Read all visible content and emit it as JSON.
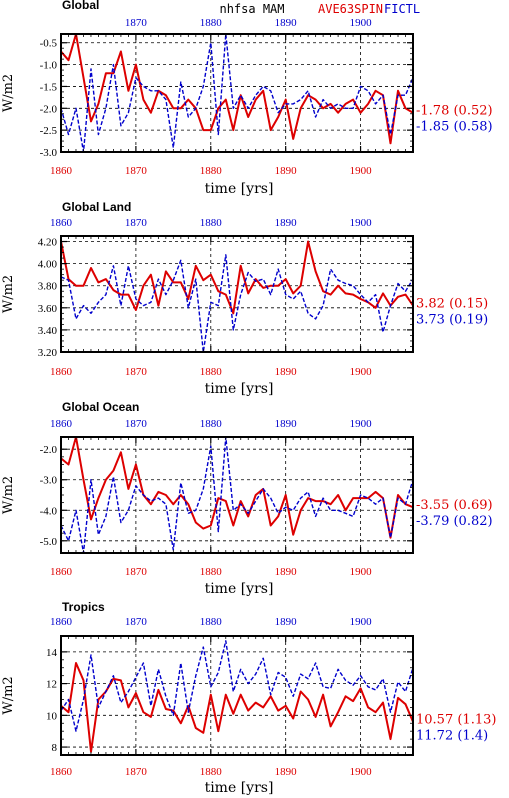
{
  "header": {
    "center": "nhfsa  MAM",
    "exp_label": "AVE63SPIN",
    "ctl_label": "FICTL"
  },
  "colors": {
    "exp": "#dd0000",
    "ctl": "#0000cc"
  },
  "xlabel": "time [yrs]",
  "ylabel": "W/m2",
  "chart_data": [
    {
      "type": "line",
      "title": "Global",
      "xlim": [
        1860,
        1907
      ],
      "ylim": [
        -3.0,
        -0.3
      ],
      "yticks": [
        -3.0,
        -2.5,
        -2.0,
        -1.5,
        -1.0,
        -0.5
      ],
      "ytick_labels": [
        "-3.0",
        "-2.5",
        "-2.0",
        "-1.5",
        "-1.0",
        "-0.5"
      ],
      "xticks": [
        1860,
        1870,
        1880,
        1890,
        1900
      ],
      "xtick_labels": [
        "1860",
        "1870",
        "1880",
        "1890",
        "1900"
      ],
      "grid": true,
      "top_xlabels_shown": false,
      "stats": {
        "exp": "-1.78 (0.52)",
        "ctl": "-1.85 (0.58)"
      },
      "series": [
        {
          "style": "solid",
          "x": [
            1860,
            1861,
            1862,
            1863,
            1864,
            1865,
            1866,
            1867,
            1868,
            1869,
            1870,
            1871,
            1872,
            1873,
            1874,
            1875,
            1876,
            1877,
            1878,
            1879,
            1880,
            1881,
            1882,
            1883,
            1884,
            1885,
            1886,
            1887,
            1888,
            1889,
            1890,
            1891,
            1892,
            1893,
            1894,
            1895,
            1896,
            1897,
            1898,
            1899,
            1900,
            1901,
            1902,
            1903,
            1904,
            1905,
            1906,
            1907
          ],
          "values": [
            -0.7,
            -0.9,
            -0.3,
            -1.3,
            -2.3,
            -1.9,
            -1.2,
            -1.2,
            -0.7,
            -1.6,
            -1.0,
            -1.8,
            -2.1,
            -1.6,
            -1.7,
            -2.0,
            -2.0,
            -1.8,
            -2.0,
            -2.5,
            -2.5,
            -2.0,
            -1.8,
            -2.5,
            -1.7,
            -2.2,
            -1.8,
            -1.6,
            -2.5,
            -2.2,
            -1.8,
            -2.7,
            -2.0,
            -1.7,
            -1.8,
            -2.0,
            -1.9,
            -2.1,
            -1.9,
            -1.8,
            -2.1,
            -1.9,
            -1.6,
            -1.7,
            -2.8,
            -1.6,
            -2.0,
            -2.1
          ]
        },
        {
          "style": "dashed",
          "x": [
            1860,
            1861,
            1862,
            1863,
            1864,
            1865,
            1866,
            1867,
            1868,
            1869,
            1870,
            1871,
            1872,
            1873,
            1874,
            1875,
            1876,
            1877,
            1878,
            1879,
            1880,
            1881,
            1882,
            1883,
            1884,
            1885,
            1886,
            1887,
            1888,
            1889,
            1890,
            1891,
            1892,
            1893,
            1894,
            1895,
            1896,
            1897,
            1898,
            1899,
            1900,
            1901,
            1902,
            1903,
            1904,
            1905,
            1906,
            1907
          ],
          "values": [
            -2.0,
            -2.6,
            -2.0,
            -3.0,
            -1.1,
            -2.6,
            -2.0,
            -1.0,
            -2.4,
            -2.1,
            -1.3,
            -1.5,
            -1.6,
            -1.6,
            -1.8,
            -2.9,
            -1.4,
            -2.2,
            -2.0,
            -1.5,
            -0.5,
            -2.6,
            -0.3,
            -2.0,
            -1.7,
            -2.0,
            -1.7,
            -1.5,
            -1.6,
            -2.1,
            -1.9,
            -1.9,
            -1.8,
            -1.6,
            -2.2,
            -1.8,
            -2.0,
            -1.9,
            -2.0,
            -2.0,
            -1.5,
            -1.6,
            -1.9,
            -1.7,
            -2.6,
            -1.7,
            -1.7,
            -1.3
          ]
        }
      ]
    },
    {
      "type": "line",
      "title": "Global Land",
      "xlim": [
        1860,
        1907
      ],
      "ylim": [
        3.2,
        4.25
      ],
      "yticks": [
        3.2,
        3.4,
        3.6,
        3.8,
        4.0,
        4.2
      ],
      "ytick_labels": [
        "3.20",
        "3.40",
        "3.60",
        "3.80",
        "4.00",
        "4.20"
      ],
      "xticks": [
        1860,
        1870,
        1880,
        1890,
        1900
      ],
      "xtick_labels": [
        "1860",
        "1870",
        "1880",
        "1890",
        "1900"
      ],
      "grid": true,
      "top_xlabels_shown": true,
      "stats": {
        "exp": "3.82 (0.15)",
        "ctl": "3.73 (0.19)"
      },
      "series": [
        {
          "style": "solid",
          "x": [
            1860,
            1861,
            1862,
            1863,
            1864,
            1865,
            1866,
            1867,
            1868,
            1869,
            1870,
            1871,
            1872,
            1873,
            1874,
            1875,
            1876,
            1877,
            1878,
            1879,
            1880,
            1881,
            1882,
            1883,
            1884,
            1885,
            1886,
            1887,
            1888,
            1889,
            1890,
            1891,
            1892,
            1893,
            1894,
            1895,
            1896,
            1897,
            1898,
            1899,
            1900,
            1901,
            1902,
            1903,
            1904,
            1905,
            1906,
            1907
          ],
          "values": [
            4.2,
            3.86,
            3.8,
            3.8,
            3.96,
            3.83,
            3.86,
            3.76,
            3.72,
            3.72,
            3.58,
            3.8,
            3.9,
            3.62,
            3.93,
            3.83,
            3.83,
            3.68,
            3.98,
            3.85,
            3.9,
            3.75,
            3.72,
            3.55,
            3.98,
            3.73,
            3.86,
            3.78,
            3.8,
            3.8,
            3.86,
            3.73,
            3.8,
            4.2,
            3.93,
            3.75,
            3.72,
            3.8,
            3.73,
            3.72,
            3.68,
            3.65,
            3.6,
            3.73,
            3.62,
            3.7,
            3.72,
            3.62
          ]
        },
        {
          "style": "dashed",
          "x": [
            1860,
            1861,
            1862,
            1863,
            1864,
            1865,
            1866,
            1867,
            1868,
            1869,
            1870,
            1871,
            1872,
            1873,
            1874,
            1875,
            1876,
            1877,
            1878,
            1879,
            1880,
            1881,
            1882,
            1883,
            1884,
            1885,
            1886,
            1887,
            1888,
            1889,
            1890,
            1891,
            1892,
            1893,
            1894,
            1895,
            1896,
            1897,
            1898,
            1899,
            1900,
            1901,
            1902,
            1903,
            1904,
            1905,
            1906,
            1907
          ],
          "values": [
            3.88,
            3.85,
            3.5,
            3.62,
            3.55,
            3.65,
            3.72,
            3.98,
            3.62,
            3.98,
            3.68,
            3.62,
            3.65,
            3.86,
            3.72,
            3.85,
            4.03,
            3.6,
            3.86,
            3.2,
            3.65,
            3.62,
            4.08,
            3.4,
            3.72,
            3.92,
            3.84,
            3.86,
            3.72,
            3.95,
            3.72,
            3.68,
            3.75,
            3.55,
            3.5,
            3.62,
            3.95,
            3.85,
            3.82,
            3.8,
            3.72,
            3.65,
            3.72,
            3.38,
            3.62,
            3.82,
            3.75,
            3.86
          ]
        }
      ]
    },
    {
      "type": "line",
      "title": "Global Ocean",
      "xlim": [
        1860,
        1907
      ],
      "ylim": [
        -5.4,
        -1.6
      ],
      "yticks": [
        -5.0,
        -4.0,
        -3.0,
        -2.0
      ],
      "ytick_labels": [
        "-5.0",
        "-4.0",
        "-3.0",
        "-2.0"
      ],
      "xticks": [
        1860,
        1870,
        1880,
        1890,
        1900
      ],
      "xtick_labels": [
        "1860",
        "1870",
        "1880",
        "1890",
        "1900"
      ],
      "grid": true,
      "top_xlabels_shown": true,
      "stats": {
        "exp": "-3.55 (0.69)",
        "ctl": "-3.79 (0.82)"
      },
      "series": [
        {
          "style": "solid",
          "x": [
            1860,
            1861,
            1862,
            1863,
            1864,
            1865,
            1866,
            1867,
            1868,
            1869,
            1870,
            1871,
            1872,
            1873,
            1874,
            1875,
            1876,
            1877,
            1878,
            1879,
            1880,
            1881,
            1882,
            1883,
            1884,
            1885,
            1886,
            1887,
            1888,
            1889,
            1890,
            1891,
            1892,
            1893,
            1894,
            1895,
            1896,
            1897,
            1898,
            1899,
            1900,
            1901,
            1902,
            1903,
            1904,
            1905,
            1906,
            1907
          ],
          "values": [
            -2.3,
            -2.5,
            -1.6,
            -3.0,
            -4.3,
            -3.6,
            -3.0,
            -2.7,
            -2.1,
            -3.3,
            -2.5,
            -3.5,
            -3.8,
            -3.4,
            -3.5,
            -3.8,
            -3.5,
            -3.8,
            -4.4,
            -4.6,
            -4.5,
            -3.6,
            -3.7,
            -4.5,
            -3.7,
            -4.2,
            -3.5,
            -3.3,
            -4.5,
            -4.2,
            -3.5,
            -4.8,
            -4.0,
            -3.6,
            -3.7,
            -3.7,
            -3.8,
            -3.5,
            -4.0,
            -3.6,
            -3.6,
            -3.6,
            -3.4,
            -3.6,
            -4.9,
            -3.5,
            -3.8,
            -3.9
          ]
        },
        {
          "style": "dashed",
          "x": [
            1860,
            1861,
            1862,
            1863,
            1864,
            1865,
            1866,
            1867,
            1868,
            1869,
            1870,
            1871,
            1872,
            1873,
            1874,
            1875,
            1876,
            1877,
            1878,
            1879,
            1880,
            1881,
            1882,
            1883,
            1884,
            1885,
            1886,
            1887,
            1888,
            1889,
            1890,
            1891,
            1892,
            1893,
            1894,
            1895,
            1896,
            1897,
            1898,
            1899,
            1900,
            1901,
            1902,
            1903,
            1904,
            1905,
            1906,
            1907
          ],
          "values": [
            -4.5,
            -5.0,
            -4.0,
            -5.4,
            -3.0,
            -4.8,
            -4.2,
            -2.9,
            -4.4,
            -4.0,
            -3.2,
            -3.5,
            -3.7,
            -3.6,
            -3.8,
            -5.3,
            -3.1,
            -4.1,
            -4.0,
            -3.3,
            -1.9,
            -4.7,
            -1.6,
            -4.0,
            -3.8,
            -4.1,
            -3.7,
            -3.3,
            -3.6,
            -4.1,
            -3.9,
            -4.0,
            -3.6,
            -3.4,
            -4.2,
            -3.6,
            -4.0,
            -4.0,
            -4.1,
            -4.2,
            -3.5,
            -3.6,
            -3.8,
            -3.6,
            -4.9,
            -3.6,
            -3.8,
            -3.0
          ]
        }
      ]
    },
    {
      "type": "line",
      "title": "Tropics",
      "xlim": [
        1860,
        1907
      ],
      "ylim": [
        7.5,
        15.0
      ],
      "yticks": [
        8,
        10,
        12,
        14
      ],
      "ytick_labels": [
        "8",
        "10",
        "12",
        "14"
      ],
      "xticks": [
        1860,
        1870,
        1880,
        1890,
        1900
      ],
      "xtick_labels": [
        "1860",
        "1870",
        "1880",
        "1890",
        "1900"
      ],
      "grid": true,
      "top_xlabels_shown": true,
      "stats": {
        "exp": "10.57 (1.13)",
        "ctl": "11.72 (1.4)"
      },
      "series": [
        {
          "style": "solid",
          "x": [
            1860,
            1861,
            1862,
            1863,
            1864,
            1865,
            1866,
            1867,
            1868,
            1869,
            1870,
            1871,
            1872,
            1873,
            1874,
            1875,
            1876,
            1877,
            1878,
            1879,
            1880,
            1881,
            1882,
            1883,
            1884,
            1885,
            1886,
            1887,
            1888,
            1889,
            1890,
            1891,
            1892,
            1893,
            1894,
            1895,
            1896,
            1897,
            1898,
            1899,
            1900,
            1901,
            1902,
            1903,
            1904,
            1905,
            1906,
            1907
          ],
          "values": [
            10.6,
            10.2,
            13.3,
            12.2,
            7.7,
            11.0,
            11.5,
            12.3,
            12.2,
            10.5,
            11.4,
            10.2,
            9.9,
            11.6,
            10.4,
            10.3,
            9.5,
            10.6,
            9.2,
            8.9,
            11.3,
            9.0,
            11.3,
            10.1,
            11.3,
            10.3,
            10.8,
            10.5,
            11.2,
            10.3,
            10.6,
            9.8,
            11.5,
            11.0,
            9.9,
            11.3,
            9.3,
            10.2,
            11.2,
            10.9,
            11.7,
            10.5,
            10.2,
            10.8,
            8.5,
            11.1,
            10.7,
            9.6
          ]
        },
        {
          "style": "dashed",
          "x": [
            1860,
            1861,
            1862,
            1863,
            1864,
            1865,
            1866,
            1867,
            1868,
            1869,
            1870,
            1871,
            1872,
            1873,
            1874,
            1875,
            1876,
            1877,
            1878,
            1879,
            1880,
            1881,
            1882,
            1883,
            1884,
            1885,
            1886,
            1887,
            1888,
            1889,
            1890,
            1891,
            1892,
            1893,
            1894,
            1895,
            1896,
            1897,
            1898,
            1899,
            1900,
            1901,
            1902,
            1903,
            1904,
            1905,
            1906,
            1907
          ],
          "values": [
            10.3,
            11.0,
            9.0,
            11.0,
            13.8,
            10.5,
            11.5,
            12.5,
            10.8,
            11.5,
            12.4,
            13.3,
            10.6,
            12.9,
            11.2,
            10.0,
            13.3,
            10.2,
            12.5,
            14.3,
            11.8,
            12.7,
            14.7,
            11.5,
            12.9,
            12.0,
            12.6,
            13.6,
            11.3,
            12.7,
            12.4,
            11.2,
            12.6,
            12.3,
            13.3,
            11.8,
            11.7,
            12.9,
            12.2,
            11.9,
            12.5,
            11.8,
            11.6,
            12.3,
            10.2,
            12.1,
            11.5,
            13.0
          ]
        }
      ]
    }
  ]
}
